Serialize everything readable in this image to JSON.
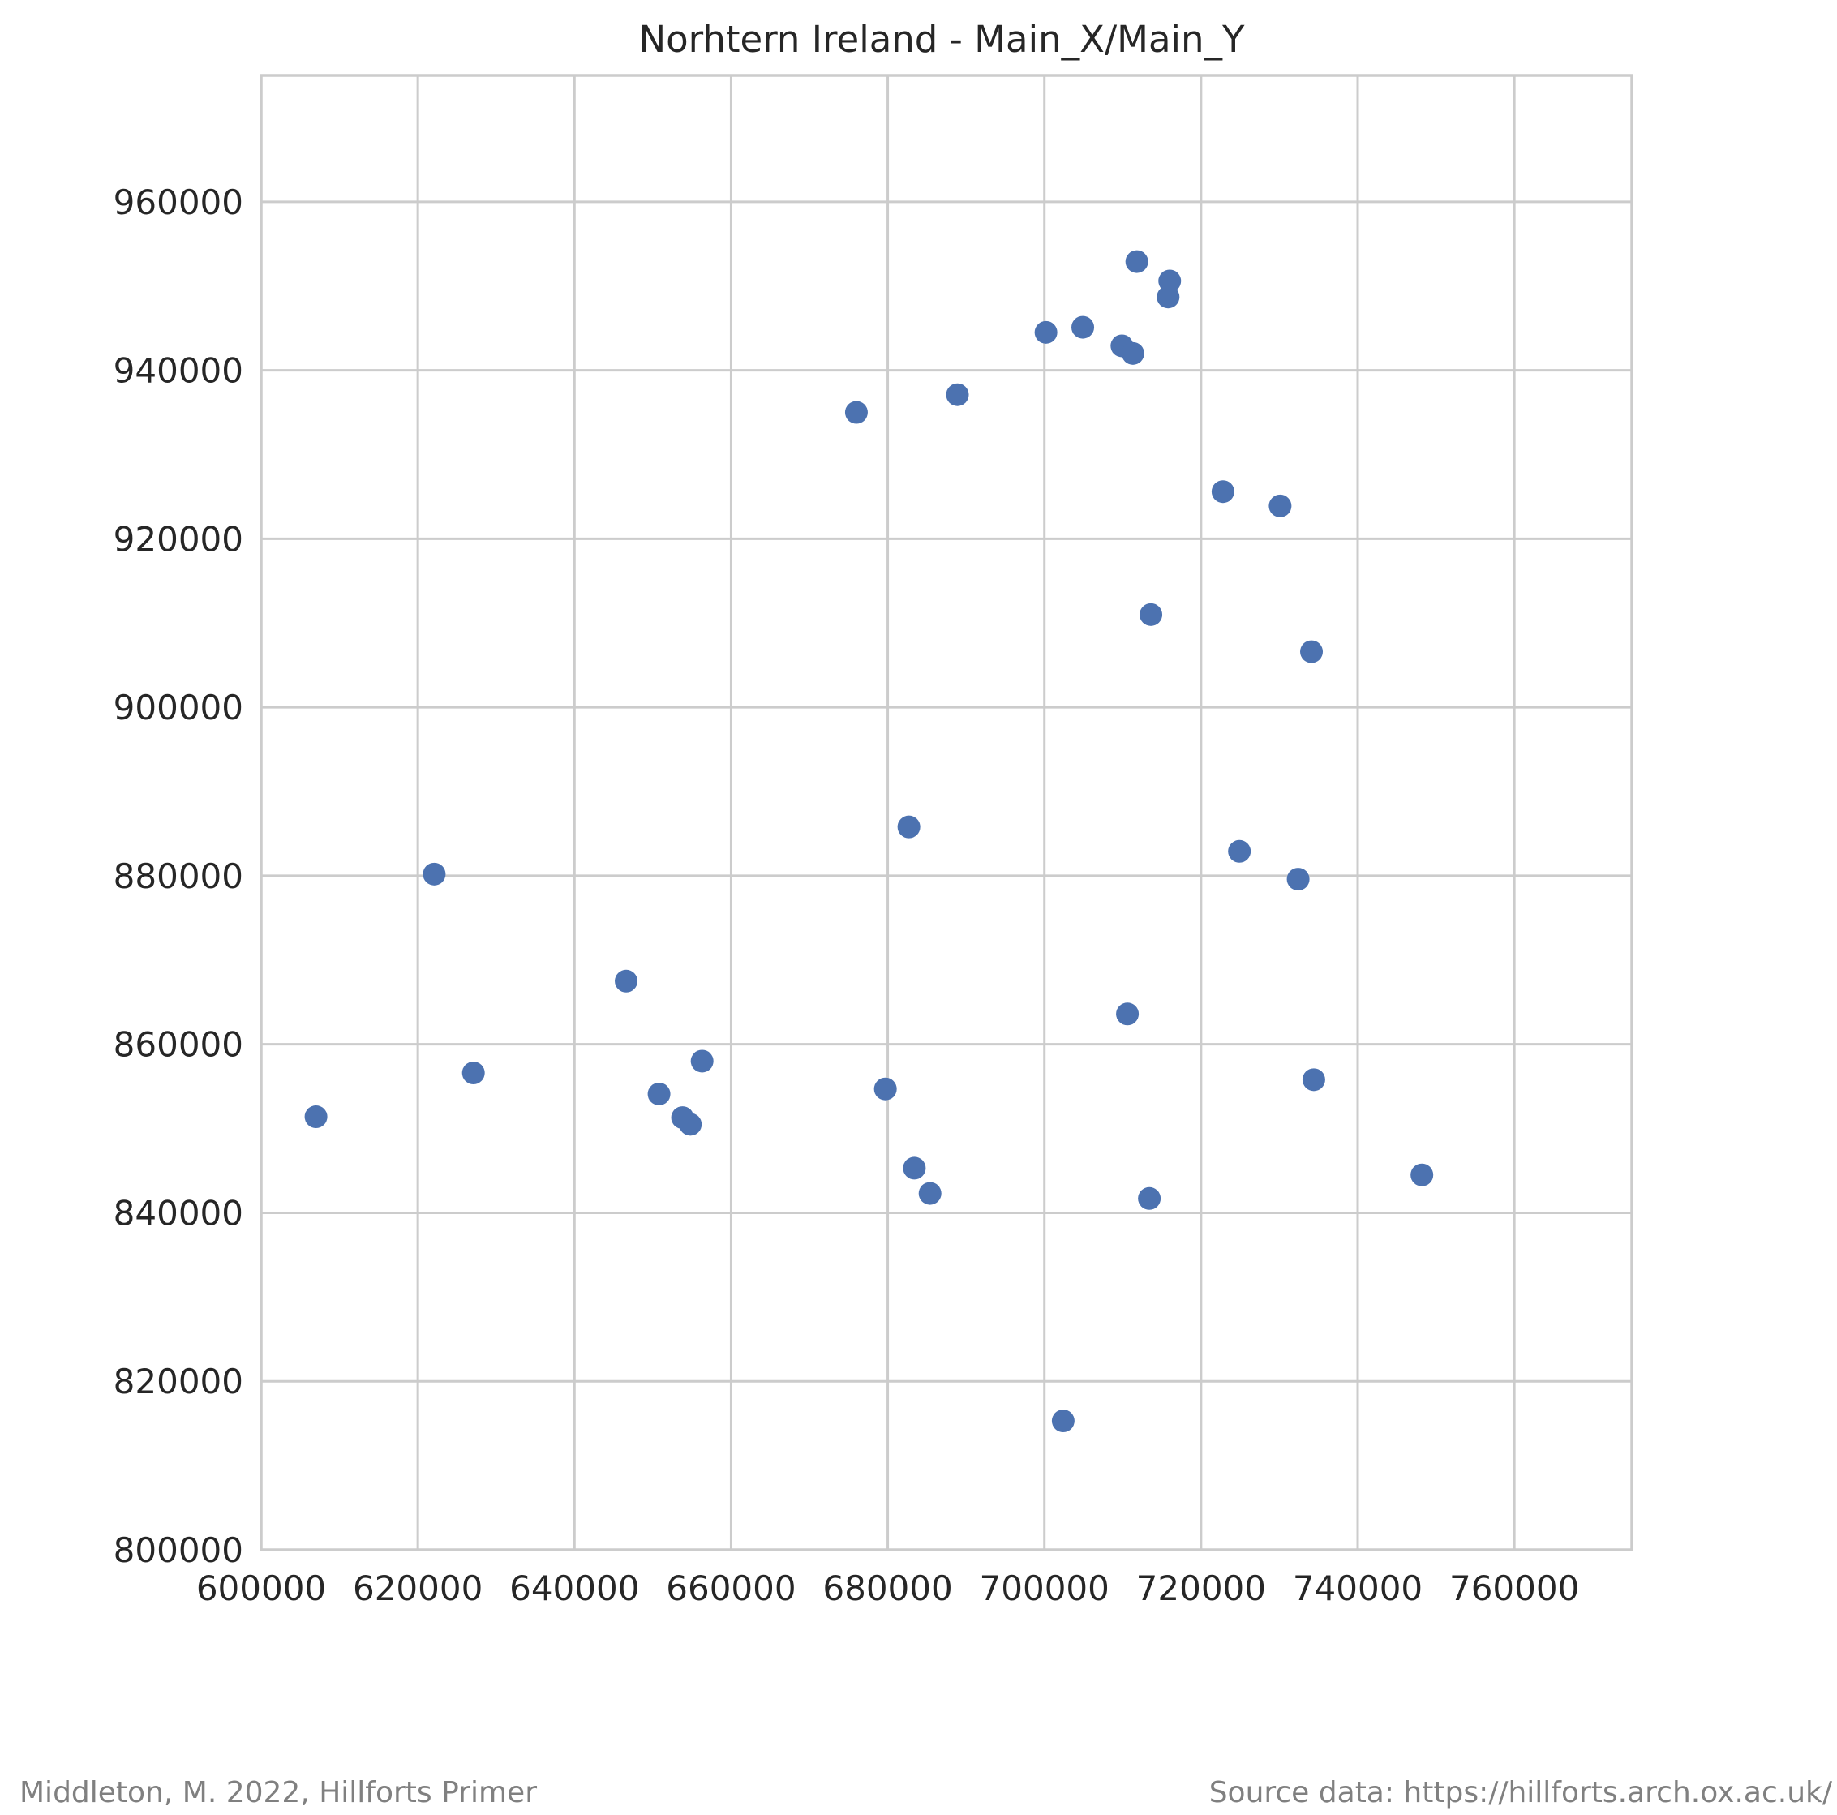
{
  "chart_data": {
    "type": "scatter",
    "title": "Norhtern Ireland - Main_X/Main_Y",
    "xlabel": "",
    "ylabel": "",
    "xlim": [
      600000,
      775000
    ],
    "ylim": [
      800000,
      975000
    ],
    "x_ticks": [
      600000,
      620000,
      640000,
      660000,
      680000,
      700000,
      720000,
      740000,
      760000
    ],
    "y_ticks": [
      800000,
      820000,
      840000,
      860000,
      880000,
      900000,
      920000,
      940000,
      960000
    ],
    "grid": true,
    "point_color": "#4c72b0",
    "points": [
      {
        "x": 711800,
        "y": 952900
      },
      {
        "x": 716000,
        "y": 950600
      },
      {
        "x": 715800,
        "y": 948700
      },
      {
        "x": 700200,
        "y": 944500
      },
      {
        "x": 704900,
        "y": 945100
      },
      {
        "x": 709900,
        "y": 942900
      },
      {
        "x": 711300,
        "y": 942000
      },
      {
        "x": 688900,
        "y": 937100
      },
      {
        "x": 676000,
        "y": 935000
      },
      {
        "x": 722800,
        "y": 925600
      },
      {
        "x": 730100,
        "y": 923900
      },
      {
        "x": 713600,
        "y": 911000
      },
      {
        "x": 734100,
        "y": 906600
      },
      {
        "x": 682700,
        "y": 885800
      },
      {
        "x": 724900,
        "y": 882900
      },
      {
        "x": 622100,
        "y": 880200
      },
      {
        "x": 732400,
        "y": 879600
      },
      {
        "x": 646600,
        "y": 867500
      },
      {
        "x": 710600,
        "y": 863600
      },
      {
        "x": 656300,
        "y": 858000
      },
      {
        "x": 627100,
        "y": 856600
      },
      {
        "x": 734400,
        "y": 855800
      },
      {
        "x": 679700,
        "y": 854700
      },
      {
        "x": 650800,
        "y": 854100
      },
      {
        "x": 607000,
        "y": 851400
      },
      {
        "x": 653800,
        "y": 851300
      },
      {
        "x": 654800,
        "y": 850500
      },
      {
        "x": 683400,
        "y": 845300
      },
      {
        "x": 748200,
        "y": 844500
      },
      {
        "x": 685400,
        "y": 842300
      },
      {
        "x": 713400,
        "y": 841700
      },
      {
        "x": 702400,
        "y": 815300
      }
    ]
  },
  "footer": {
    "left": "Middleton, M. 2022, Hillforts Primer",
    "right": "Source data: https://hillforts.arch.ox.ac.uk/"
  }
}
